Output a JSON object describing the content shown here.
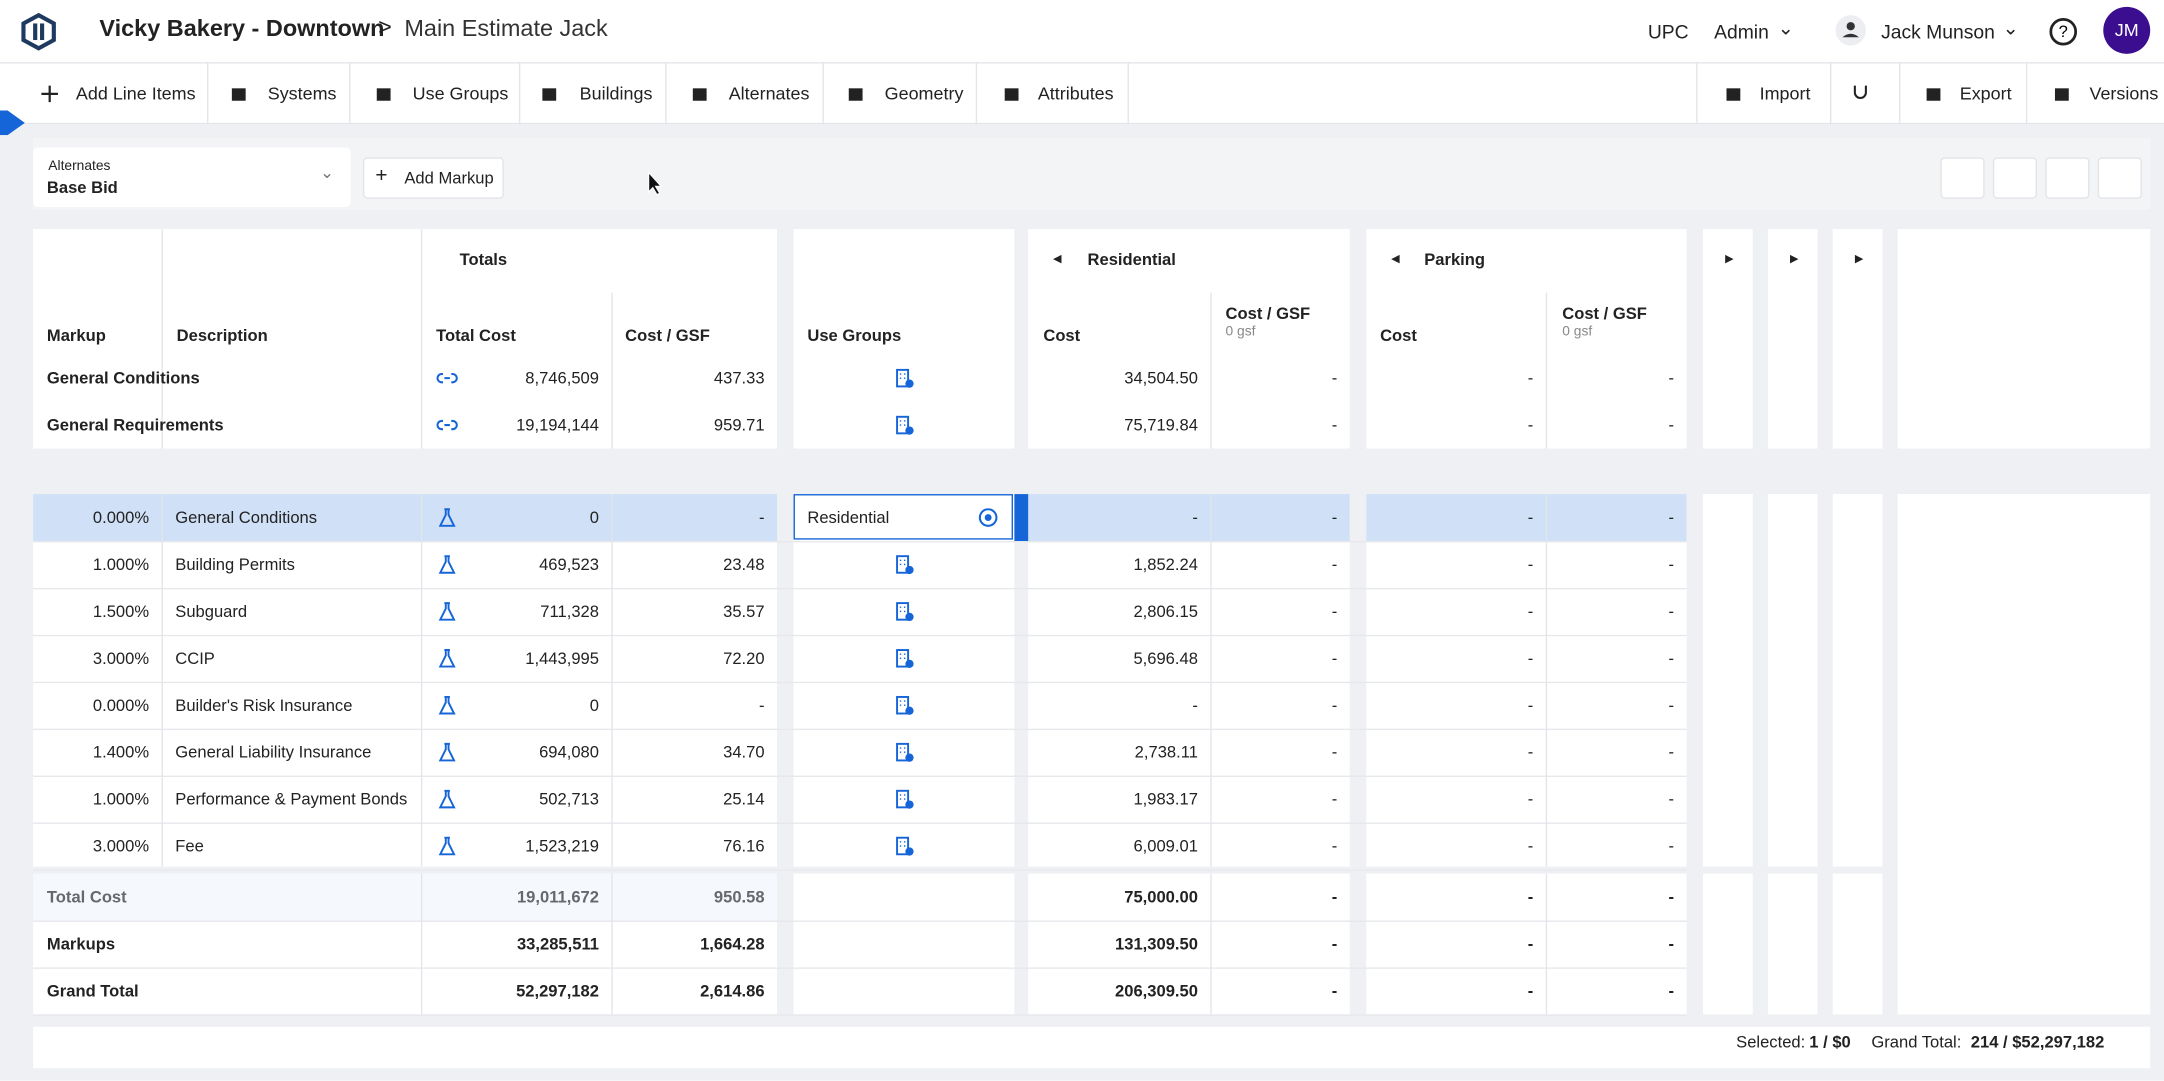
{
  "header": {
    "project": "Vicky Bakery - Downtown",
    "estimate": "Main Estimate Jack",
    "links": [
      "UPC",
      "Admin"
    ],
    "user": "Jack Munson",
    "avatar": "JM"
  },
  "toolbar": {
    "left": [
      "Add Line Items",
      "Systems",
      "Use Groups",
      "Buildings",
      "Alternates",
      "Geometry",
      "Attributes"
    ],
    "right": [
      "Import",
      "Export",
      "Versions"
    ]
  },
  "controls": {
    "alternates_label": "Alternates",
    "alternates_value": "Base Bid",
    "add_markup": "Add Markup"
  },
  "table": {
    "groups": [
      "Totals",
      "Residential",
      "Parking"
    ],
    "columns": [
      "Markup",
      "Description",
      "Total Cost",
      "Cost / GSF",
      "Use Groups",
      "Cost",
      "Cost / GSF",
      "0 gsf",
      "Cost",
      "Cost / GSF",
      "0 gsf"
    ],
    "top_rows": [
      [
        "General Conditions",
        "8,746,509",
        "437.33",
        "34,504.50",
        "-",
        "-",
        "-"
      ],
      [
        "General Requirements",
        "19,194,144",
        "959.71",
        "75,719.84",
        "-",
        "-",
        "-"
      ]
    ],
    "rows": [
      [
        "0.000%",
        "General Conditions",
        "0",
        "-",
        "-",
        "-",
        "-",
        "-"
      ],
      [
        "1.000%",
        "Building Permits",
        "469,523",
        "23.48",
        "1,852.24",
        "-",
        "-",
        "-"
      ],
      [
        "1.500%",
        "Subguard",
        "711,328",
        "35.57",
        "2,806.15",
        "-",
        "-",
        "-"
      ],
      [
        "3.000%",
        "CCIP",
        "1,443,995",
        "72.20",
        "5,696.48",
        "-",
        "-",
        "-"
      ],
      [
        "0.000%",
        "Builder's Risk Insurance",
        "0",
        "-",
        "-",
        "-",
        "-",
        "-"
      ],
      [
        "1.400%",
        "General Liability Insurance",
        "694,080",
        "34.70",
        "2,738.11",
        "-",
        "-",
        "-"
      ],
      [
        "1.000%",
        "Performance & Payment Bonds",
        "502,713",
        "25.14",
        "1,983.17",
        "-",
        "-",
        "-"
      ],
      [
        "3.000%",
        "Fee",
        "1,523,219",
        "76.16",
        "6,009.01",
        "-",
        "-",
        "-"
      ]
    ],
    "selected_use_group": "Residential",
    "summary_rows": [
      [
        "Total Cost",
        "19,011,672",
        "950.58",
        "75,000.00",
        "-",
        "-",
        "-"
      ],
      [
        "Markups",
        "33,285,511",
        "1,664.28",
        "131,309.50",
        "-",
        "-",
        "-"
      ],
      [
        "Grand Total",
        "52,297,182",
        "2,614.86",
        "206,309.50",
        "-",
        "-",
        "-"
      ]
    ]
  },
  "footer": {
    "selected_label": "Selected:",
    "selected_value": "1 / $0",
    "total_label": "Grand Total:",
    "total_value": "214 / $52,297,182"
  }
}
